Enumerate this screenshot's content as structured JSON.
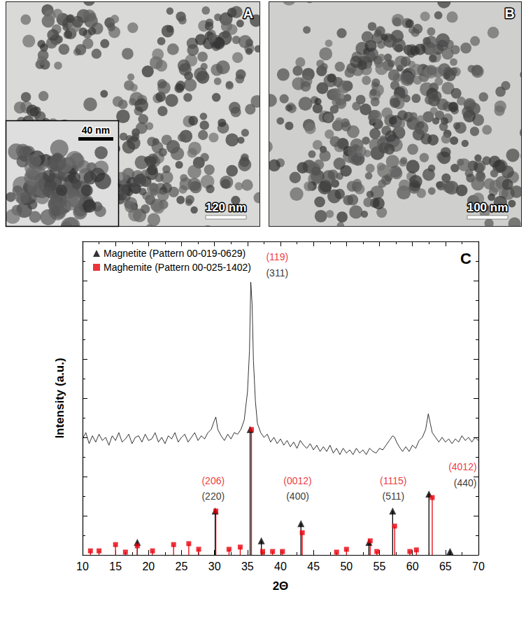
{
  "figure": {
    "panels": [
      {
        "label": "A",
        "scale_bar": "120 nm",
        "inset": {
          "scale_bar": "40 nm"
        }
      },
      {
        "label": "B",
        "scale_bar": "100 nm"
      }
    ]
  },
  "chart_data": {
    "type": "line",
    "panel_label": "C",
    "x_label": "2Θ",
    "y_label": "Intensity (a.u.)",
    "xlim": [
      10,
      70
    ],
    "xticks": [
      10,
      15,
      20,
      25,
      30,
      35,
      40,
      45,
      50,
      55,
      60,
      65,
      70
    ],
    "ylim": [
      0,
      100
    ],
    "yticks": [
      0,
      12.5,
      25,
      37.5,
      50,
      62.5,
      75,
      87.5,
      100
    ],
    "tick_labels": "x",
    "grid": false,
    "legend": "upper left",
    "series": [
      {
        "type": "line",
        "color": "#000000",
        "line_style": "solid",
        "x": [
          10,
          10.5,
          11,
          11.5,
          12,
          12.5,
          13,
          13.5,
          14,
          14.5,
          15,
          15.5,
          16,
          16.5,
          17,
          17.5,
          18,
          18.5,
          19,
          19.5,
          20,
          20.5,
          21,
          21.5,
          22,
          22.5,
          23,
          23.5,
          24,
          24.5,
          25,
          25.5,
          26,
          26.5,
          27,
          27.5,
          28,
          28.5,
          29,
          29.5,
          30,
          30.2,
          30.5,
          31,
          31.5,
          32,
          32.5,
          33,
          33.5,
          34,
          34.5,
          35,
          35.3,
          35.5,
          35.7,
          35.9,
          36.2,
          36.5,
          37,
          37.5,
          38,
          38.5,
          39,
          39.5,
          40,
          40.5,
          41,
          41.5,
          42,
          42.5,
          43,
          43.5,
          44,
          44.5,
          45,
          45.5,
          46,
          46.5,
          47,
          47.5,
          48,
          48.5,
          49,
          49.5,
          50,
          50.5,
          51,
          51.5,
          52,
          52.5,
          53,
          53.5,
          54,
          54.5,
          55,
          55.5,
          56,
          56.5,
          57,
          57.3,
          57.6,
          58,
          58.5,
          59,
          59.5,
          60,
          60.5,
          61,
          61.5,
          62,
          62.4,
          62.7,
          63,
          63.5,
          64,
          64.5,
          65,
          65.5,
          66,
          66.5,
          67,
          67.5,
          68,
          68.5,
          69,
          69.5,
          70
        ],
        "values": [
          37,
          39,
          35.5,
          38,
          36,
          38.5,
          36.5,
          37.5,
          35,
          38,
          36.5,
          39,
          36,
          37,
          38.5,
          35.5,
          37.5,
          38,
          36,
          38.5,
          36.5,
          37,
          39,
          36,
          37.5,
          35.5,
          38,
          37,
          39,
          36,
          37.5,
          38.5,
          36,
          37.5,
          39,
          36.5,
          38,
          37,
          39,
          40,
          43,
          44,
          40,
          38,
          36.5,
          38.5,
          37,
          39,
          38.5,
          40,
          43,
          52,
          65,
          87,
          80,
          62,
          49,
          42,
          39,
          37.5,
          38.5,
          36,
          37.5,
          35.5,
          37,
          35,
          36.5,
          34.5,
          36,
          34,
          36.5,
          35,
          34,
          35.5,
          33.5,
          35,
          33,
          34.5,
          33,
          35,
          32.5,
          34,
          32,
          34,
          32.5,
          33.5,
          32,
          34,
          32.5,
          33.5,
          32,
          34,
          33,
          32.5,
          34,
          33.5,
          35,
          36.5,
          38,
          37.5,
          36,
          34.5,
          33,
          34.5,
          33,
          35,
          34,
          36.5,
          37.5,
          40,
          45,
          42,
          39,
          37.5,
          36,
          37.5,
          36,
          37,
          35.5,
          37,
          36,
          38,
          36.5,
          37.5,
          36,
          37.5,
          36.5
        ]
      },
      {
        "name": "Magnetite (Pattern 00-019-0629)",
        "type": "stick",
        "color": "#000000",
        "marker": "triangle",
        "x": [
          18.3,
          30.1,
          35.4,
          37.1,
          43.1,
          53.4,
          57,
          62.5,
          65.7
        ],
        "values": [
          4,
          14,
          40,
          4.5,
          10,
          4,
          14,
          19.4,
          1.1
        ]
      },
      {
        "name": "Maghemite (Pattern 00-025-1402)",
        "type": "stick",
        "color": "#e8000b",
        "marker": "square",
        "x": [
          11.2,
          12.5,
          15,
          16.5,
          18.3,
          20.6,
          23.8,
          26.1,
          27.6,
          30.2,
          32.2,
          33.9,
          35.6,
          37.3,
          38.8,
          40.3,
          43.3,
          48.5,
          50,
          53.6,
          54.6,
          57.3,
          59.6,
          60.6,
          63
        ],
        "values": [
          1.3,
          1.3,
          3.3,
          0.9,
          2.9,
          1.3,
          3.3,
          3.6,
          1.8,
          14,
          1.8,
          2.5,
          40,
          1.1,
          1.1,
          1.1,
          7.1,
          0.9,
          1.8,
          4.5,
          1.1,
          9.2,
          1.1,
          1.6,
          18.3
        ]
      }
    ],
    "annotations": [
      {
        "text": "(119)",
        "x": 39.5,
        "y": 95,
        "color": "#e8000b"
      },
      {
        "text": "(311)",
        "x": 39.5,
        "y": 90,
        "color": "#000000"
      },
      {
        "text": "(206)",
        "x": 29.8,
        "y": 23.7,
        "color": "#e8000b"
      },
      {
        "text": "(220)",
        "x": 29.8,
        "y": 18.8,
        "color": "#000000"
      },
      {
        "text": "(0012)",
        "x": 42.6,
        "y": 23.7,
        "color": "#e8000b"
      },
      {
        "text": "(400)",
        "x": 42.6,
        "y": 18.8,
        "color": "#000000"
      },
      {
        "text": "(1115)",
        "x": 57.1,
        "y": 23.7,
        "color": "#e8000b"
      },
      {
        "text": "(511)",
        "x": 57.1,
        "y": 18.8,
        "color": "#000000"
      },
      {
        "text": "(4012)",
        "x": 67.6,
        "y": 28.1,
        "color": "#e8000b"
      },
      {
        "text": "(440)",
        "x": 68,
        "y": 23,
        "color": "#000000"
      }
    ]
  }
}
